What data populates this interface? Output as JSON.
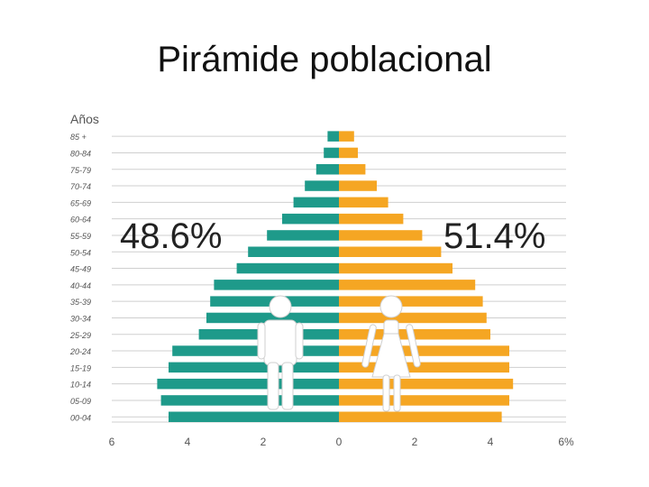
{
  "slide": {
    "title": "Pirámide poblacional"
  },
  "chart_data": {
    "type": "bar",
    "orientation": "horizontal-population-pyramid",
    "title": "Pirámide poblacional",
    "ylabel": "Años",
    "categories": [
      "85 +",
      "80-84",
      "75-79",
      "70-74",
      "65-69",
      "60-64",
      "55-59",
      "50-54",
      "45-49",
      "40-44",
      "35-39",
      "30-34",
      "25-29",
      "20-24",
      "15-19",
      "10-14",
      "05-09",
      "00-04"
    ],
    "series": [
      {
        "side": "left",
        "color": "#1e9a8a",
        "values": [
          0.3,
          0.4,
          0.6,
          0.9,
          1.2,
          1.5,
          1.9,
          2.4,
          2.7,
          3.3,
          3.4,
          3.5,
          3.7,
          4.4,
          4.5,
          4.8,
          4.7,
          4.5
        ]
      },
      {
        "side": "right",
        "color": "#f5a623",
        "values": [
          0.4,
          0.5,
          0.7,
          1.0,
          1.3,
          1.7,
          2.2,
          2.7,
          3.0,
          3.6,
          3.8,
          3.9,
          4.0,
          4.5,
          4.5,
          4.6,
          4.5,
          4.3
        ]
      }
    ],
    "xticks": [
      "6",
      "4",
      "2",
      "0",
      "2",
      "4",
      "6%"
    ],
    "xlim": [
      -6,
      6
    ],
    "annotations": {
      "left_pct": "48.6%",
      "right_pct": "51.4%"
    },
    "grid": true,
    "icons": [
      "man-icon",
      "woman-icon"
    ]
  }
}
